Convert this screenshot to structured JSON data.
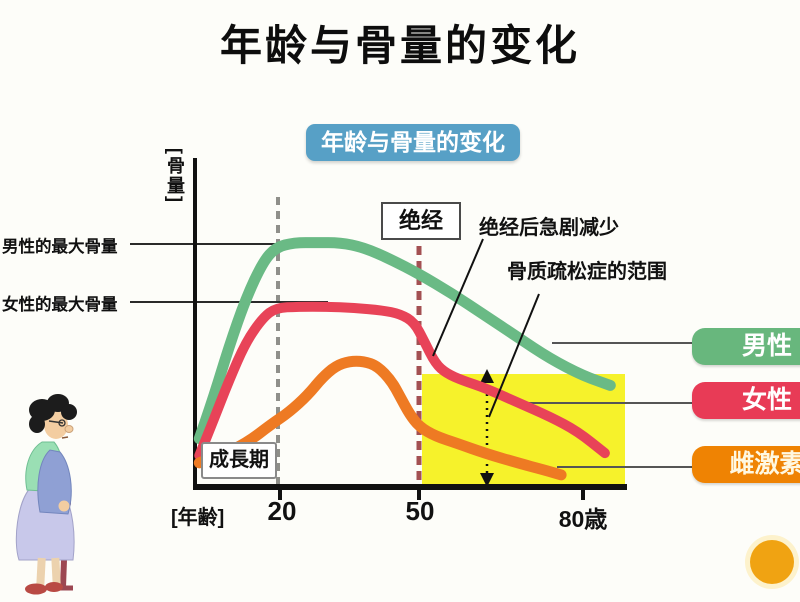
{
  "title": "年龄与骨量的变化",
  "chart": {
    "badge_title": "年龄与骨量的变化",
    "y_axis_label": "[骨量]",
    "x_axis_label": "[年齢]",
    "x_tick_labels": [
      "20",
      "50",
      "80歳"
    ],
    "label_male_peak": "男性的最大骨量",
    "label_female_peak": "女性的最大骨量",
    "menopause_box": "绝经",
    "annotation_rapid_decrease": "绝经后急剧减少",
    "annotation_osteoporosis": "骨质疏松症的范围",
    "growth_period_box": "成長期"
  },
  "legend": {
    "items": [
      {
        "label": "男性",
        "color": "#68b77d"
      },
      {
        "label": "女性",
        "color": "#e83b56"
      },
      {
        "label": "雌激素",
        "color": "#ef8303"
      }
    ]
  },
  "colors": {
    "title_badge_blue": "#57a0c6",
    "male_curve_green": "#6aba85",
    "female_curve_red": "#e84358",
    "estrogen_curve_orange": "#ee7a23",
    "osteoporosis_highlight_yellow": "#f6f22b",
    "menopause_dashed_red": "#a35052",
    "age20_dashed_gray": "#8f8f8a",
    "decoration_dot_orange": "#f0a312"
  },
  "chart_data": {
    "type": "line",
    "title": "年龄与骨量的变化",
    "xlabel": "[年齢]",
    "ylabel": "[骨量]",
    "x_ticks": [
      {
        "age": 20,
        "label": "20"
      },
      {
        "age": 50,
        "label": "50"
      },
      {
        "age": 80,
        "label": "80歳"
      }
    ],
    "x_range_years": [
      0,
      86
    ],
    "y_axis_note": "qualitative relative bone mass, 0-110 (no numeric ticks shown)",
    "grid": false,
    "legend_position": "right",
    "series": [
      {
        "name": "男性",
        "color": "#6aba85",
        "points": [
          [
            1,
            20
          ],
          [
            4,
            35
          ],
          [
            8,
            58
          ],
          [
            12,
            78
          ],
          [
            16,
            93
          ],
          [
            19,
            99
          ],
          [
            23,
            101
          ],
          [
            28,
            101
          ],
          [
            33,
            101
          ],
          [
            38,
            99
          ],
          [
            44,
            94
          ],
          [
            50,
            88
          ],
          [
            56,
            80
          ],
          [
            62,
            71
          ],
          [
            68,
            62
          ],
          [
            74,
            53
          ],
          [
            80,
            46
          ],
          [
            85,
            42
          ]
        ]
      },
      {
        "name": "女性",
        "color": "#e84358",
        "points": [
          [
            1,
            13
          ],
          [
            4,
            26
          ],
          [
            8,
            44
          ],
          [
            12,
            60
          ],
          [
            16,
            70
          ],
          [
            19,
            74
          ],
          [
            24,
            74.5
          ],
          [
            30,
            74.5
          ],
          [
            36,
            74
          ],
          [
            42,
            73
          ],
          [
            46,
            71.5
          ],
          [
            49,
            68
          ],
          [
            51,
            60
          ],
          [
            53,
            51
          ],
          [
            55,
            47
          ],
          [
            58,
            44
          ],
          [
            62,
            41
          ],
          [
            68,
            35
          ],
          [
            74,
            29
          ],
          [
            79,
            23
          ],
          [
            84,
            14
          ]
        ]
      },
      {
        "name": "雌激素",
        "color": "#ee7a23",
        "points": [
          [
            1,
            10
          ],
          [
            6,
            13
          ],
          [
            12,
            18
          ],
          [
            18,
            26
          ],
          [
            22,
            31
          ],
          [
            26,
            38
          ],
          [
            29,
            45
          ],
          [
            32,
            50
          ],
          [
            35,
            52
          ],
          [
            38,
            52
          ],
          [
            41,
            50
          ],
          [
            44,
            44
          ],
          [
            46,
            37
          ],
          [
            48,
            30
          ],
          [
            50,
            25
          ],
          [
            53,
            21
          ],
          [
            57,
            18
          ],
          [
            62,
            14
          ],
          [
            68,
            10
          ],
          [
            73,
            7
          ],
          [
            76,
            5
          ]
        ]
      }
    ],
    "annotations": [
      {
        "text": "绝经",
        "type": "boxed-label",
        "at_age": 50
      },
      {
        "text": "绝经后急剧减少",
        "type": "callout",
        "points_to": "female curve drop after age 50"
      },
      {
        "text": "骨质疏松症的范围",
        "type": "callout",
        "points_to": "yellow highlighted band after age 50"
      },
      {
        "text": "成長期",
        "type": "boxed-label",
        "at_age_range": [
          0,
          20
        ]
      },
      {
        "text": "男性的最大骨量",
        "type": "reference-line",
        "value": 101
      },
      {
        "text": "女性的最大骨量",
        "type": "reference-line",
        "value": 74.5
      }
    ],
    "highlight_region": {
      "label": "骨质疏松症的范围",
      "x_from_age": 50,
      "x_to_age": 86,
      "color": "#f6f22b"
    }
  }
}
